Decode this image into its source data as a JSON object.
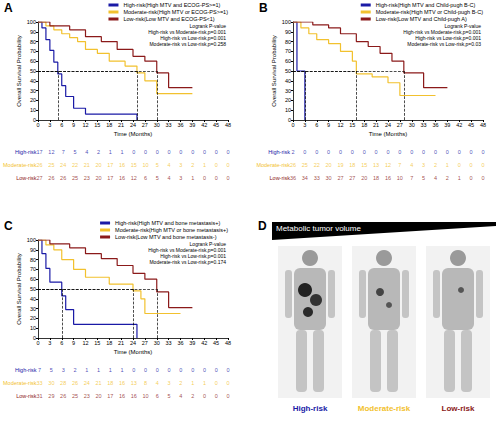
{
  "chart_data": [
    {
      "type": "line",
      "panel": "A",
      "xlabel": "Time (Months)",
      "ylabel": "Overall Survival Probability",
      "xlim": [
        0,
        48
      ],
      "xticks": [
        0,
        3,
        6,
        9,
        12,
        15,
        18,
        21,
        24,
        27,
        30,
        33,
        36,
        39,
        42,
        45,
        48
      ],
      "ylim": [
        0,
        100
      ],
      "yticks": [
        0,
        10,
        20,
        30,
        40,
        50,
        60,
        70,
        80,
        90,
        100
      ],
      "grid": false,
      "legend": "upper right",
      "reference_y": 50,
      "annotations": [
        "Logrank P-value",
        "High-risk vs Moderate-risk,p=0.001",
        "High-risk vs Low-risk,p=0.001",
        "Moderate-risk vs Low-risk,p=0.258"
      ],
      "series": [
        {
          "name": "High-risk(High MTV and ECOG-PS>=1)",
          "color": "#1a1aa6",
          "line_style": "step",
          "median": 5,
          "x": [
            0,
            1,
            2,
            3,
            4,
            5,
            6,
            7,
            9,
            12,
            24,
            25
          ],
          "values": [
            100,
            94,
            82,
            71,
            59,
            47,
            35,
            24,
            12,
            6,
            6,
            0
          ]
        },
        {
          "name": "Moderate-risk(High MTV or ECOG-PS>=1)",
          "color": "#f2c12e",
          "line_style": "step",
          "median": 25,
          "x": [
            0,
            2,
            4,
            6,
            8,
            10,
            12,
            15,
            18,
            22,
            25,
            27,
            30,
            39
          ],
          "values": [
            100,
            96,
            92,
            88,
            84,
            80,
            72,
            68,
            60,
            55,
            48,
            40,
            27,
            27
          ]
        },
        {
          "name": "Low-risk(Low MTV and ECOG-PS<1)",
          "color": "#8b1a1a",
          "line_style": "step",
          "median": 30,
          "x": [
            0,
            3,
            8,
            12,
            16,
            20,
            24,
            27,
            30,
            33,
            39
          ],
          "values": [
            100,
            96,
            92,
            85,
            80,
            72,
            65,
            60,
            48,
            33,
            33
          ]
        }
      ],
      "risk_table": {
        "rows": [
          {
            "name": "High-risk",
            "color": "#1a1aa6",
            "values": [
              17,
              12,
              7,
              5,
              4,
              2,
              1,
              1,
              0,
              0,
              0,
              0,
              0,
              0,
              0,
              0,
              0
            ]
          },
          {
            "name": "Moderate-risk",
            "color": "#f2c12e",
            "values": [
              26,
              25,
              24,
              22,
              21,
              20,
              17,
              16,
              15,
              10,
              5,
              4,
              3,
              2,
              1,
              0,
              0
            ]
          },
          {
            "name": "Low-risk",
            "color": "#8b1a1a",
            "values": [
              27,
              26,
              26,
              25,
              23,
              20,
              17,
              16,
              12,
              6,
              5,
              4,
              3,
              1,
              0,
              0,
              0
            ]
          }
        ]
      }
    },
    {
      "type": "line",
      "panel": "B",
      "xlabel": "Time (Months)",
      "ylabel": "Overall Survival Probability",
      "xlim": [
        0,
        48
      ],
      "xticks": [
        0,
        3,
        6,
        9,
        12,
        15,
        18,
        21,
        24,
        27,
        30,
        33,
        36,
        39,
        42,
        45,
        48
      ],
      "ylim": [
        0,
        100
      ],
      "yticks": [
        0,
        10,
        20,
        30,
        40,
        50,
        60,
        70,
        80,
        90,
        100
      ],
      "grid": false,
      "legend": "upper right",
      "reference_y": 50,
      "annotations": [
        "Logrank P-value",
        "High-risk vs Moderate-risk,p=0.001",
        "High-risk vs Low-risk,p=0.001",
        "Moderate-risk vs Low-risk,p=0.03"
      ],
      "series": [
        {
          "name": "High-risk(High MTV and Child-pugh B-C)",
          "color": "#1a1aa6",
          "line_style": "step",
          "median": 3,
          "x": [
            0,
            1,
            3
          ],
          "values": [
            100,
            50,
            0
          ]
        },
        {
          "name": "Moderate-risk(High MTV or Child-pugh B-C)",
          "color": "#f2c12e",
          "line_style": "step",
          "median": 16,
          "x": [
            0,
            2,
            4,
            6,
            9,
            12,
            15,
            16,
            20,
            24,
            27,
            36
          ],
          "values": [
            100,
            94,
            88,
            82,
            78,
            70,
            60,
            47,
            44,
            38,
            25,
            25
          ]
        },
        {
          "name": "Low-risk(Low MTV and Child-pugh A)",
          "color": "#8b1a1a",
          "line_style": "step",
          "median": 28,
          "x": [
            0,
            5,
            9,
            12,
            16,
            19,
            22,
            25,
            28,
            33,
            39
          ],
          "values": [
            100,
            97,
            94,
            88,
            80,
            75,
            68,
            60,
            48,
            33,
            33
          ]
        }
      ],
      "risk_table": {
        "rows": [
          {
            "name": "High-risk",
            "color": "#1a1aa6",
            "values": [
              2,
              0,
              0,
              0,
              0,
              0,
              0,
              0,
              0,
              0,
              0,
              0,
              0,
              0,
              0,
              0,
              0
            ]
          },
          {
            "name": "Moderate-risk",
            "color": "#f2c12e",
            "values": [
              26,
              25,
              22,
              20,
              19,
              18,
              15,
              13,
              12,
              7,
              4,
              3,
              2,
              1,
              0,
              0,
              0
            ]
          },
          {
            "name": "Low-risk",
            "color": "#8b1a1a",
            "values": [
              36,
              34,
              33,
              30,
              27,
              27,
              20,
              18,
              16,
              10,
              7,
              5,
              4,
              2,
              1,
              0,
              0
            ]
          }
        ]
      }
    },
    {
      "type": "line",
      "panel": "C",
      "xlabel": "Time (Months)",
      "ylabel": "Overall Survival Probability",
      "xlim": [
        0,
        48
      ],
      "xticks": [
        0,
        3,
        6,
        9,
        12,
        15,
        18,
        21,
        24,
        27,
        30,
        33,
        36,
        39,
        42,
        45,
        48
      ],
      "ylim": [
        0,
        100
      ],
      "yticks": [
        0,
        10,
        20,
        30,
        40,
        50,
        60,
        70,
        80,
        90,
        100
      ],
      "grid": false,
      "legend": "upper right",
      "reference_y": 50,
      "annotations": [
        "Logrank P-value",
        "High-risk vs Moderate-risk,p=0.001",
        "High-risk vs Low-risk,p=0.001",
        "Moderate-risk vs Low-risk,p=0.174"
      ],
      "series": [
        {
          "name": "High-risk(High MTV and bone metastasis+)",
          "color": "#1a1aa6",
          "line_style": "step",
          "median": 6,
          "x": [
            0,
            1,
            2,
            3,
            6,
            7,
            9,
            24,
            25
          ],
          "values": [
            100,
            86,
            71,
            57,
            43,
            29,
            14,
            14,
            0
          ]
        },
        {
          "name": "Moderate-risk(High MTV or bone metastasis+)",
          "color": "#f2c12e",
          "line_style": "step",
          "median": 24,
          "x": [
            0,
            2,
            4,
            6,
            9,
            12,
            18,
            24,
            26,
            27,
            36
          ],
          "values": [
            100,
            95,
            90,
            80,
            70,
            62,
            55,
            48,
            40,
            25,
            25
          ]
        },
        {
          "name": "Low-risk(Low MTV and bone metastasis-)",
          "color": "#8b1a1a",
          "line_style": "step",
          "median": 30,
          "x": [
            0,
            3,
            8,
            12,
            16,
            20,
            24,
            27,
            30,
            33,
            39
          ],
          "values": [
            100,
            96,
            92,
            86,
            81,
            74,
            66,
            60,
            47,
            31,
            31
          ]
        }
      ],
      "risk_table": {
        "rows": [
          {
            "name": "High-risk",
            "color": "#1a1aa6",
            "values": [
              7,
              5,
              3,
              2,
              1,
              1,
              1,
              1,
              0,
              0,
              0,
              0,
              0,
              0,
              0,
              0,
              0
            ]
          },
          {
            "name": "Moderate-risk",
            "color": "#f2c12e",
            "values": [
              33,
              30,
              28,
              26,
              24,
              21,
              18,
              16,
              13,
              8,
              4,
              3,
              2,
              1,
              1,
              0,
              0
            ]
          },
          {
            "name": "Low-risk",
            "color": "#8b1a1a",
            "values": [
              31,
              29,
              26,
              25,
              23,
              20,
              17,
              16,
              16,
              10,
              6,
              5,
              4,
              2,
              0,
              0,
              0
            ]
          }
        ]
      }
    }
  ],
  "image_panel": {
    "panel": "D",
    "title": "Metabolic tumor volume",
    "labels": [
      {
        "text": "High-risk",
        "color": "#1a1aa6"
      },
      {
        "text": "Moderate-risk",
        "color": "#f2c12e"
      },
      {
        "text": "Low-risk",
        "color": "#8b1a1a"
      }
    ]
  }
}
